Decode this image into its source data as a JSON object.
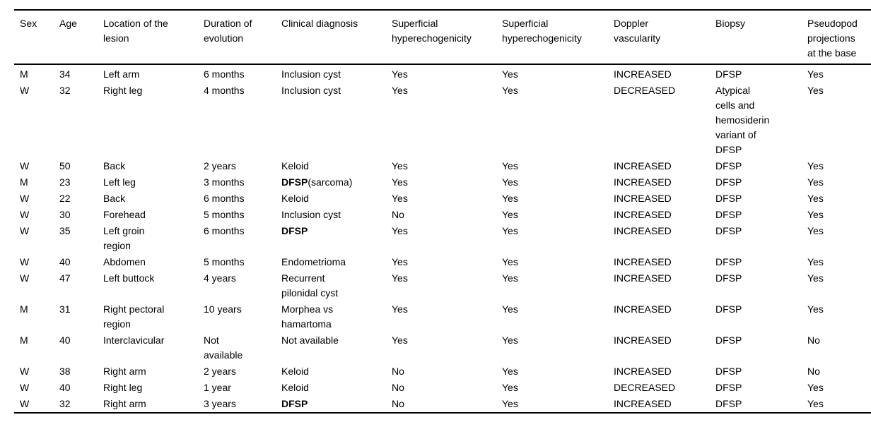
{
  "page": {
    "background_color": "#ffffff",
    "text_color": "#000000",
    "rule_color": "#000000"
  },
  "table": {
    "headers": [
      "Sex",
      "Age",
      "Location of the\nlesion",
      "Duration of\nevolution",
      "Clinical diagnosis",
      "Superficial\nhyperechogenicity",
      "Superficial\nhyperechogenicity",
      "Doppler\nvascularity",
      "Biopsy",
      "Pseudopod\nprojections\nat the base"
    ],
    "rows": [
      {
        "sex": "M",
        "age": "34",
        "location": "Left arm",
        "duration": "6 months",
        "diagnosis": [
          {
            "t": "Inclusion cyst"
          }
        ],
        "superficial_1": "Yes",
        "superficial_2": "Yes",
        "doppler": "INCREASED",
        "biopsy": "DFSP",
        "pseudopod": "Yes"
      },
      {
        "sex": "W",
        "age": "32",
        "location": "Right leg",
        "duration": "4 months",
        "diagnosis": [
          {
            "t": "Inclusion cyst"
          }
        ],
        "superficial_1": "Yes",
        "superficial_2": "Yes",
        "doppler": "DECREASED",
        "biopsy": "Atypical\ncells and\nhemosiderin\nvariant of\nDFSP",
        "pseudopod": "Yes"
      },
      {
        "sex": "W",
        "age": "50",
        "location": "Back",
        "duration": "2 years",
        "diagnosis": [
          {
            "t": "Keloid"
          }
        ],
        "superficial_1": "Yes",
        "superficial_2": "Yes",
        "doppler": "INCREASED",
        "biopsy": "DFSP",
        "pseudopod": "Yes"
      },
      {
        "sex": "M",
        "age": "23",
        "location": "Left leg",
        "duration": "3 months",
        "diagnosis": [
          {
            "t": "DFSP",
            "bold": true
          },
          {
            "t": "(sarcoma)"
          }
        ],
        "superficial_1": "Yes",
        "superficial_2": "Yes",
        "doppler": "INCREASED",
        "biopsy": "DFSP",
        "pseudopod": "Yes"
      },
      {
        "sex": "W",
        "age": "22",
        "location": "Back",
        "duration": "6 months",
        "diagnosis": [
          {
            "t": "Keloid"
          }
        ],
        "superficial_1": "Yes",
        "superficial_2": "Yes",
        "doppler": "INCREASED",
        "biopsy": "DFSP",
        "pseudopod": "Yes"
      },
      {
        "sex": "W",
        "age": "30",
        "location": "Forehead",
        "duration": "5 months",
        "diagnosis": [
          {
            "t": "Inclusion cyst"
          }
        ],
        "superficial_1": "No",
        "superficial_2": "Yes",
        "doppler": "INCREASED",
        "biopsy": "DFSP",
        "pseudopod": "Yes"
      },
      {
        "sex": "W",
        "age": "35",
        "location": "Left groin\nregion",
        "duration": "6 months",
        "diagnosis": [
          {
            "t": "DFSP",
            "bold": true
          }
        ],
        "superficial_1": "Yes",
        "superficial_2": "Yes",
        "doppler": "INCREASED",
        "biopsy": "DFSP",
        "pseudopod": "Yes"
      },
      {
        "sex": "W",
        "age": "40",
        "location": "Abdomen",
        "duration": "5 months",
        "diagnosis": [
          {
            "t": "Endometrioma"
          }
        ],
        "superficial_1": "Yes",
        "superficial_2": "Yes",
        "doppler": "INCREASED",
        "biopsy": "DFSP",
        "pseudopod": "Yes"
      },
      {
        "sex": "W",
        "age": "47",
        "location": "Left buttock",
        "duration": "4 years",
        "diagnosis": [
          {
            "t": "Recurrent\npilonidal cyst"
          }
        ],
        "superficial_1": "Yes",
        "superficial_2": "Yes",
        "doppler": "INCREASED",
        "biopsy": "DFSP",
        "pseudopod": "Yes"
      },
      {
        "sex": "M",
        "age": "31",
        "location": "Right pectoral\nregion",
        "duration": "10 years",
        "diagnosis": [
          {
            "t": "Morphea vs\nhamartoma"
          }
        ],
        "superficial_1": "Yes",
        "superficial_2": "Yes",
        "doppler": "INCREASED",
        "biopsy": "DFSP",
        "pseudopod": "Yes"
      },
      {
        "sex": "M",
        "age": "40",
        "location": "Interclavicular",
        "duration": "Not\navailable",
        "diagnosis": [
          {
            "t": "Not available"
          }
        ],
        "superficial_1": "Yes",
        "superficial_2": "Yes",
        "doppler": "INCREASED",
        "biopsy": "DFSP",
        "pseudopod": "No"
      },
      {
        "sex": "W",
        "age": "38",
        "location": "Right arm",
        "duration": "2 years",
        "diagnosis": [
          {
            "t": "Keloid"
          }
        ],
        "superficial_1": "No",
        "superficial_2": "Yes",
        "doppler": "INCREASED",
        "biopsy": "DFSP",
        "pseudopod": "No"
      },
      {
        "sex": "W",
        "age": "40",
        "location": "Right leg",
        "duration": "1 year",
        "diagnosis": [
          {
            "t": "Keloid"
          }
        ],
        "superficial_1": "No",
        "superficial_2": "Yes",
        "doppler": "DECREASED",
        "biopsy": "DFSP",
        "pseudopod": "Yes"
      },
      {
        "sex": "W",
        "age": "32",
        "location": "Right arm",
        "duration": "3 years",
        "diagnosis": [
          {
            "t": "DFSP",
            "bold": true
          }
        ],
        "superficial_1": "No",
        "superficial_2": "Yes",
        "doppler": "INCREASED",
        "biopsy": "DFSP",
        "pseudopod": "Yes"
      }
    ]
  }
}
